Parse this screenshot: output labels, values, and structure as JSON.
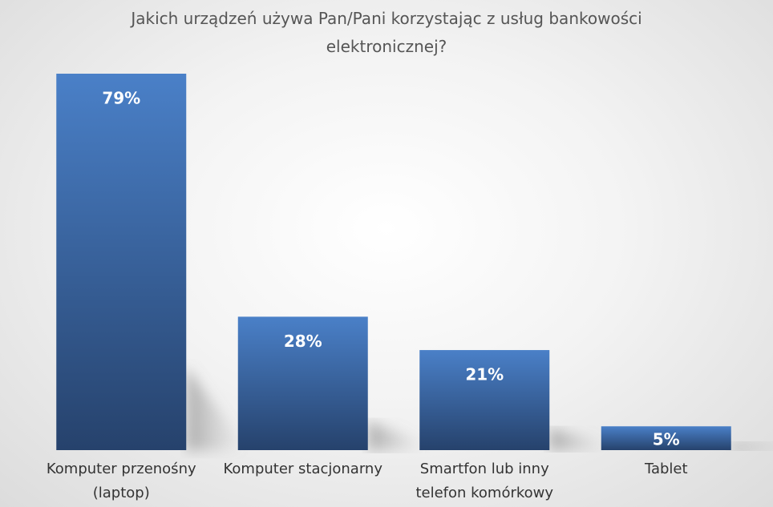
{
  "chart_data": {
    "type": "bar",
    "title": "Jakich urządzeń używa Pan/Pani korzystając z usług bankowości elektronicznej?",
    "categories": [
      "Komputer przenośny (laptop)",
      "Komputer stacjonarny",
      "Smartfon lub inny telefon komórkowy",
      "Tablet"
    ],
    "values": [
      79,
      28,
      21,
      5
    ],
    "value_labels": [
      "79%",
      "28%",
      "21%",
      "5%"
    ],
    "color": "#3f6fb0"
  }
}
